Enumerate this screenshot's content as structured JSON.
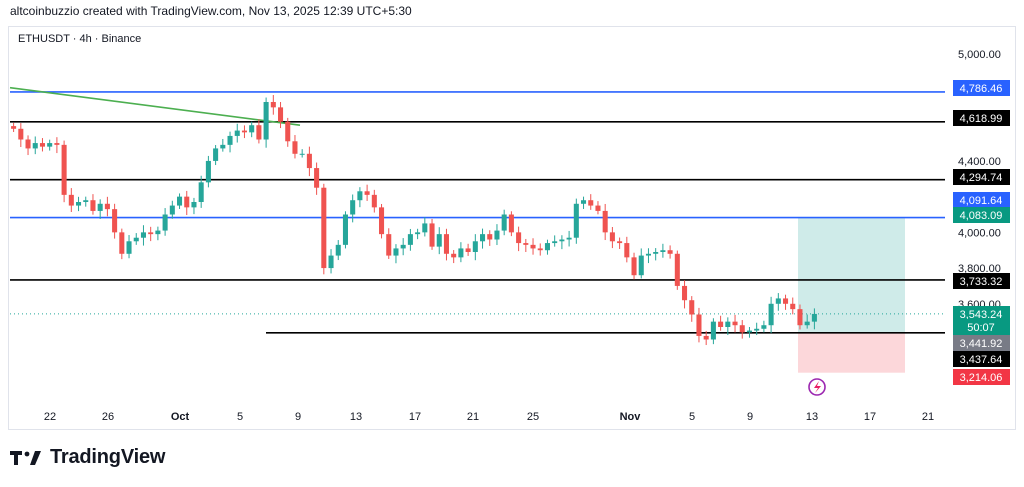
{
  "header": {
    "caption": "altcoinbuzzio created with TradingView.com, Nov 13, 2025 12:39 UTC+5:30"
  },
  "symbol": {
    "label": "ETHUSDT · 4h · Binance"
  },
  "footer": {
    "brand": "TradingView",
    "logo_icon": "tradingview-logo-icon"
  },
  "colors": {
    "up": "#26a69a",
    "down": "#ef5350",
    "blue_line": "#2962ff",
    "black_line": "#000000",
    "trend": "#4caf50"
  },
  "chart_data": {
    "type": "candlestick",
    "ylim": [
      3050,
      5150
    ],
    "y_ticks": [
      "5,000.00",
      "4,400.00",
      "4,000.00",
      "3,800.00",
      "3,600.00"
    ],
    "x_ticks": [
      "22",
      "26",
      "Oct",
      "5",
      "9",
      "13",
      "17",
      "21",
      "25",
      "Nov",
      "5",
      "9",
      "13",
      "17",
      "21"
    ],
    "horizontal_levels": [
      {
        "price": 4786.46,
        "label": "4,786.46",
        "style": "blue"
      },
      {
        "price": 4618.99,
        "label": "4,618.99",
        "style": "black"
      },
      {
        "price": 4294.74,
        "label": "4,294.74",
        "style": "black"
      },
      {
        "price": 4083.09,
        "label": "4,083.09",
        "style": "blue"
      },
      {
        "price": 3733.32,
        "label": "3,733.32",
        "style": "black"
      },
      {
        "price": 3437.64,
        "label": "3,437.64",
        "style": "black"
      }
    ],
    "price_labels": [
      {
        "label": "4,786.46",
        "color": "#2962ff"
      },
      {
        "label": "4,618.99",
        "color": "#000000"
      },
      {
        "label": "4,294.74",
        "color": "#000000"
      },
      {
        "label": "4,091.64",
        "color": "#2962ff"
      },
      {
        "label": "4,083.09",
        "color": "#089981"
      },
      {
        "label": "3,733.32",
        "color": "#000000"
      },
      {
        "label": "3,543.24",
        "color": "#089981"
      },
      {
        "label": "50:07",
        "color": "#089981"
      },
      {
        "label": "3,441.92",
        "color": "#787b86"
      },
      {
        "label": "3,437.64",
        "color": "#000000"
      },
      {
        "label": "3,214.06",
        "color": "#f23645"
      }
    ],
    "last_price": 3543.24,
    "trend_line": {
      "from_price": 4810,
      "to_price": 4600
    },
    "position": {
      "entry": 3441.92,
      "target": 4083.09,
      "stop": 3214.06
    },
    "candles_close_path": [
      4580,
      4520,
      4470,
      4500,
      4480,
      4500,
      4490,
      4210,
      4150,
      4170,
      4180,
      4120,
      4160,
      4130,
      4000,
      3880,
      3950,
      3970,
      4000,
      3990,
      4010,
      4100,
      4150,
      4200,
      4140,
      4170,
      4280,
      4400,
      4470,
      4490,
      4540,
      4570,
      4560,
      4600,
      4520,
      4730,
      4700,
      4620,
      4510,
      4440,
      4440,
      4360,
      4250,
      3800,
      3870,
      3930,
      4100,
      4180,
      4230,
      4210,
      4140,
      3990,
      3870,
      3910,
      3930,
      3990,
      4000,
      4050,
      3920,
      3990,
      3880,
      3860,
      3910,
      3890,
      3950,
      3990,
      3960,
      4010,
      4100,
      4000,
      3940,
      3930,
      3910,
      3900,
      3940,
      3950,
      3960,
      3970,
      4160,
      4180,
      4150,
      4120,
      4000,
      3950,
      3940,
      3860,
      3760,
      3870,
      3880,
      3890,
      3900,
      3880,
      3700,
      3620,
      3540,
      3420,
      3400,
      3500,
      3470,
      3500,
      3480,
      3440,
      3450,
      3460,
      3480,
      3600,
      3630,
      3600,
      3570,
      3480,
      3500,
      3543.24
    ]
  }
}
